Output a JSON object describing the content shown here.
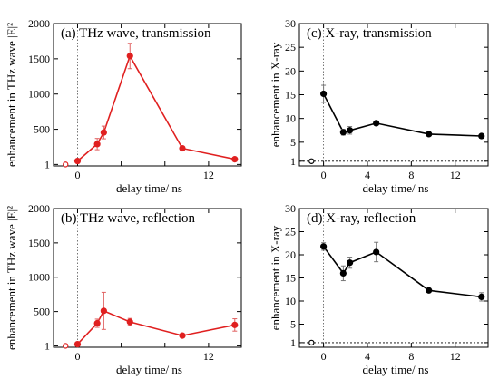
{
  "chart_data": [
    {
      "type": "line",
      "title": "(a) THz wave, transmission",
      "xlabel": "delay time/ ns",
      "ylabel": "enhancement in THz wave |E|²",
      "xlim": [
        -2.2,
        15
      ],
      "ylim": [
        -20,
        2000
      ],
      "xticks": [
        0,
        4,
        8,
        12
      ],
      "xtick_labels": [
        "0",
        "",
        "",
        "12"
      ],
      "yticks": [
        1,
        500,
        1000,
        1500,
        2000
      ],
      "ytick_labels": [
        "1",
        "500",
        "1000",
        "1500",
        "2000"
      ],
      "color": "#e02020",
      "series": [
        {
          "x": [
            0,
            1.8,
            2.4,
            4.8,
            9.6,
            14.4
          ],
          "y": [
            50,
            290,
            455,
            1540,
            230,
            75
          ],
          "err": [
            0,
            80,
            90,
            180,
            0,
            0
          ]
        }
      ],
      "reference_point": {
        "x": -1.1,
        "y": 1
      },
      "reference_lines": {
        "x": 0
      }
    },
    {
      "type": "line",
      "title": "(b) THz wave, reflection",
      "xlabel": "delay time/ ns",
      "ylabel": "enhancement in THz wave |E|²",
      "xlim": [
        -2.2,
        15
      ],
      "ylim": [
        -20,
        2000
      ],
      "xticks": [
        0,
        4,
        8,
        12
      ],
      "xtick_labels": [
        "0",
        "",
        "",
        "12"
      ],
      "yticks": [
        1,
        500,
        1000,
        1500,
        2000
      ],
      "ytick_labels": [
        "1",
        "500",
        "1000",
        "1500",
        "2000"
      ],
      "color": "#e02020",
      "series": [
        {
          "x": [
            0,
            1.8,
            2.4,
            4.8,
            9.6,
            14.4
          ],
          "y": [
            25,
            330,
            510,
            350,
            150,
            305
          ],
          "err": [
            0,
            60,
            270,
            50,
            0,
            90
          ]
        }
      ],
      "reference_point": {
        "x": -1.1,
        "y": 1
      },
      "reference_lines": {
        "x": 0
      }
    },
    {
      "type": "line",
      "title": "(c) X-ray, transmission",
      "xlabel": "delay time/ ns",
      "ylabel": "enhancement in X-ray",
      "xlim": [
        -2.2,
        15
      ],
      "ylim": [
        0,
        30
      ],
      "xticks": [
        0,
        4,
        8,
        12
      ],
      "xtick_labels": [
        "0",
        "4",
        "8",
        "12"
      ],
      "yticks": [
        1,
        5,
        10,
        15,
        20,
        25,
        30
      ],
      "ytick_labels": [
        "1",
        "5",
        "10",
        "15",
        "20",
        "25",
        "30"
      ],
      "color": "#000000",
      "series": [
        {
          "x": [
            0,
            1.8,
            2.4,
            4.8,
            9.6,
            14.4
          ],
          "y": [
            15.2,
            7.1,
            7.5,
            9.0,
            6.7,
            6.3
          ],
          "err": [
            1.8,
            0.6,
            0.8,
            0.3,
            0.3,
            0.3
          ]
        }
      ],
      "reference_point": {
        "x": -1.1,
        "y": 1
      },
      "reference_lines": {
        "x": 0,
        "y": 1
      }
    },
    {
      "type": "line",
      "title": "(d) X-ray, reflection",
      "xlabel": "delay time/ ns",
      "ylabel": "enhancement in X-ray",
      "xlim": [
        -2.2,
        15
      ],
      "ylim": [
        0,
        30
      ],
      "xticks": [
        0,
        4,
        8,
        12
      ],
      "xtick_labels": [
        "0",
        "4",
        "8",
        "12"
      ],
      "yticks": [
        1,
        5,
        10,
        15,
        20,
        25,
        30
      ],
      "ytick_labels": [
        "1",
        "5",
        "10",
        "15",
        "20",
        "25",
        "30"
      ],
      "color": "#000000",
      "series": [
        {
          "x": [
            0,
            1.8,
            2.4,
            4.8,
            9.6,
            14.4
          ],
          "y": [
            21.8,
            16.0,
            18.3,
            20.6,
            12.3,
            10.9
          ],
          "err": [
            0.8,
            1.6,
            1.2,
            2.1,
            0.3,
            0.9
          ]
        }
      ],
      "reference_point": {
        "x": -1.1,
        "y": 1
      },
      "reference_lines": {
        "x": 0,
        "y": 1
      }
    }
  ]
}
